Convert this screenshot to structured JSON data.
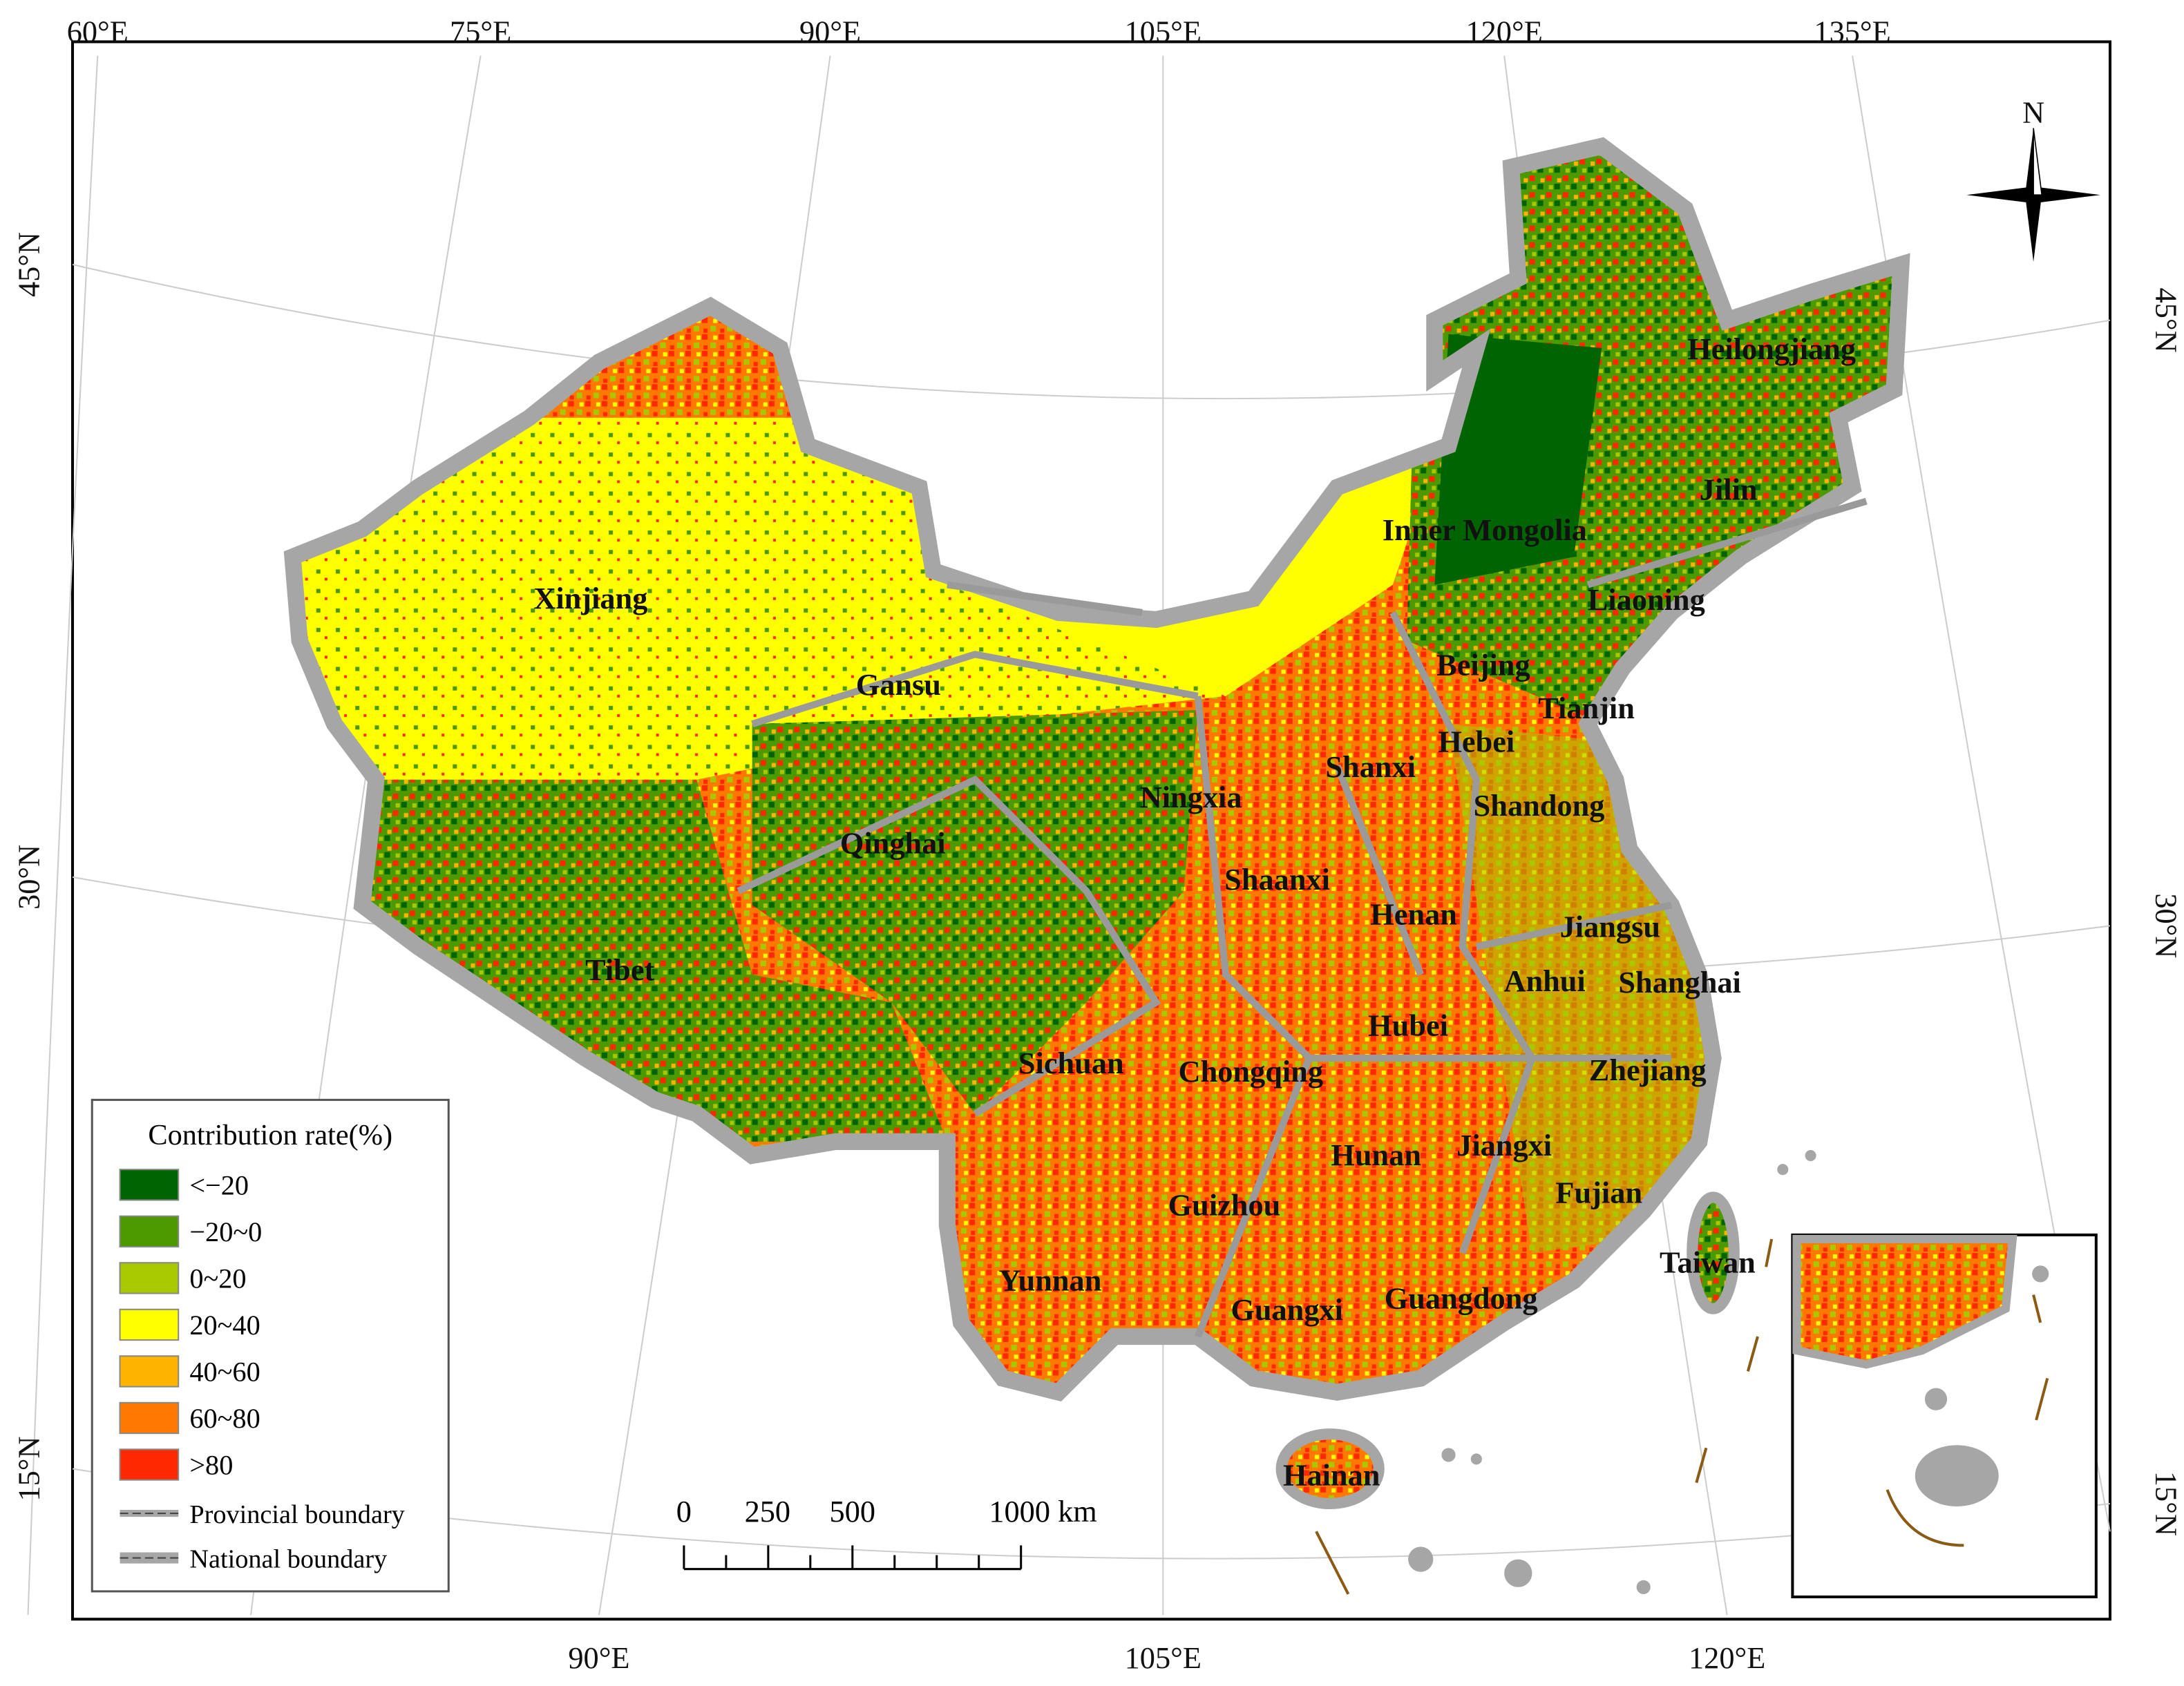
{
  "map": {
    "top_labels": [
      "60°E",
      "75°E",
      "90°E",
      "105°E",
      "120°E",
      "135°E"
    ],
    "bottom_labels": [
      "90°E",
      "105°E",
      "120°E"
    ],
    "left_labels": [
      "45°N",
      "30°N",
      "15°N"
    ],
    "right_labels": [
      "45°N",
      "30°N",
      "15°N"
    ],
    "north": "N",
    "provinces": [
      "Xinjiang",
      "Gansu",
      "Qinghai",
      "Tibet",
      "Sichuan",
      "Yunnan",
      "Ningxia",
      "Shaanxi",
      "Shanxi",
      "Inner Mongolia",
      "Heilongjiang",
      "Jilin",
      "Liaoning",
      "Beijing",
      "Tianjin",
      "Hebei",
      "Shandong",
      "Henan",
      "Jiangsu",
      "Anhui",
      "Shanghai",
      "Hubei",
      "Chongqing",
      "Zhejiang",
      "Hunan",
      "Jiangxi",
      "Fujian",
      "Guizhou",
      "Guangxi",
      "Guangdong",
      "Taiwan",
      "Hainan"
    ],
    "legend": {
      "title": "Contribution rate(%)",
      "items": [
        {
          "label": "<−20",
          "color": "#006400"
        },
        {
          "label": "−20~0",
          "color": "#4c9a00"
        },
        {
          "label": "0~20",
          "color": "#a8c800"
        },
        {
          "label": "20~40",
          "color": "#ffff00"
        },
        {
          "label": "40~60",
          "color": "#ffb400"
        },
        {
          "label": "60~80",
          "color": "#ff7800"
        },
        {
          "label": ">80",
          "color": "#ff2800"
        }
      ],
      "lines": [
        "Provincial boundary",
        "National boundary"
      ]
    },
    "scale_bar": {
      "labels": [
        "0",
        "250",
        "500",
        "1000 km"
      ]
    }
  }
}
